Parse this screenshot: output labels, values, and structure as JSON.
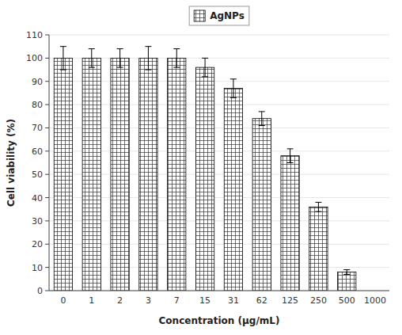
{
  "chart_data": {
    "type": "bar",
    "xlabel": "Concentration (μg/mL)",
    "ylabel": "Cell viability (%)",
    "categories": [
      "0",
      "1",
      "2",
      "3",
      "7",
      "15",
      "31",
      "62",
      "125",
      "250",
      "500",
      "1000"
    ],
    "series": [
      {
        "name": "AgNPs",
        "color": "#ffffff",
        "values": [
          100,
          100,
          100,
          100,
          100,
          96,
          87,
          74,
          58,
          36,
          8,
          0
        ],
        "errors": [
          5,
          4,
          4,
          5,
          4,
          4,
          4,
          3,
          3,
          2,
          1,
          0
        ]
      }
    ],
    "ylim": [
      0,
      110
    ],
    "yticks": [
      0,
      10,
      20,
      30,
      40,
      50,
      60,
      70,
      80,
      90,
      100,
      110
    ],
    "legend": "top"
  }
}
